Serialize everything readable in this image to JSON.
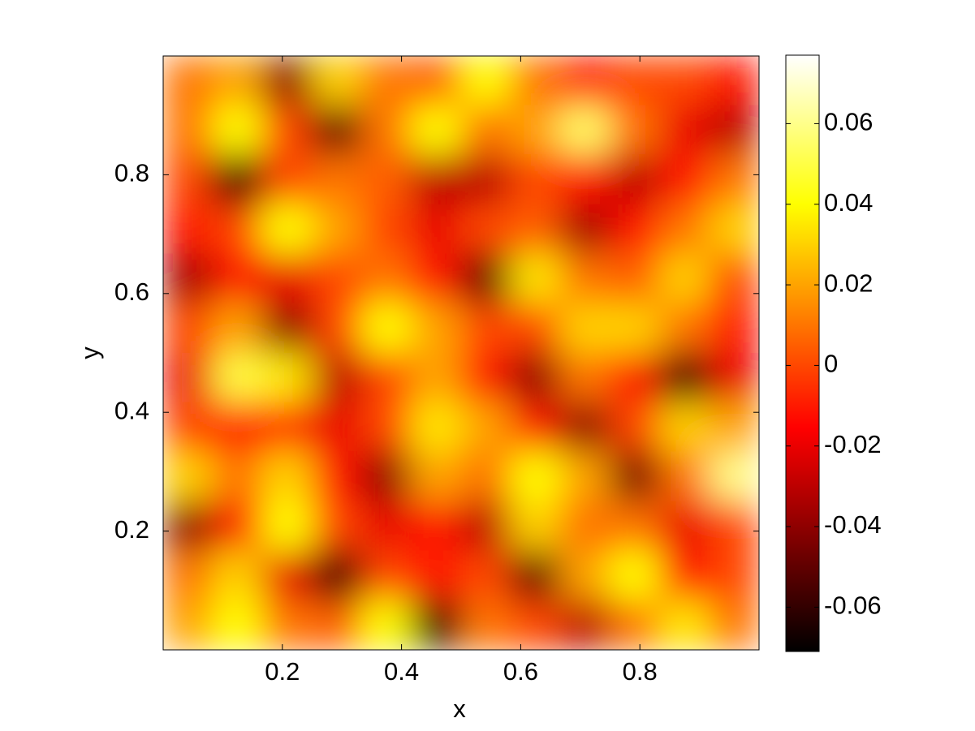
{
  "chart_data": {
    "type": "heatmap",
    "colormap": "hot",
    "xlabel": "x",
    "ylabel": "y",
    "x": [
      0.042,
      0.125,
      0.208,
      0.292,
      0.375,
      0.458,
      0.542,
      0.625,
      0.708,
      0.792,
      0.875,
      0.958
    ],
    "y": [
      0.958,
      0.875,
      0.792,
      0.708,
      0.625,
      0.542,
      0.458,
      0.375,
      0.292,
      0.208,
      0.125,
      0.042
    ],
    "values": [
      [
        0.01,
        0.02,
        -0.04,
        0.03,
        0.01,
        0.005,
        0.04,
        0.01,
        -0.01,
        0.0,
        0.0,
        -0.01
      ],
      [
        0.01,
        0.04,
        0.0,
        -0.05,
        0.01,
        0.04,
        0.01,
        0.02,
        0.055,
        0.01,
        -0.02,
        -0.03
      ],
      [
        0.0,
        -0.06,
        0.0,
        0.01,
        0.005,
        -0.03,
        -0.03,
        0.0,
        -0.01,
        -0.03,
        -0.01,
        0.01
      ],
      [
        -0.01,
        0.0,
        0.04,
        0.02,
        0.0,
        -0.02,
        0.0,
        0.005,
        -0.035,
        -0.01,
        0.01,
        0.03
      ],
      [
        -0.035,
        -0.01,
        -0.02,
        0.0,
        0.01,
        -0.01,
        -0.05,
        0.035,
        0.01,
        0.005,
        0.03,
        0.0
      ],
      [
        0.0,
        0.02,
        -0.04,
        0.0,
        0.04,
        0.02,
        0.0,
        0.0,
        0.03,
        0.03,
        0.01,
        -0.01
      ],
      [
        -0.02,
        0.05,
        0.035,
        -0.03,
        0.0,
        0.02,
        -0.01,
        -0.04,
        0.01,
        -0.01,
        -0.06,
        -0.02
      ],
      [
        0.0,
        -0.01,
        -0.005,
        -0.02,
        0.0,
        0.035,
        0.02,
        -0.01,
        -0.04,
        0.0,
        0.03,
        0.02
      ],
      [
        0.03,
        0.01,
        0.03,
        -0.01,
        -0.04,
        0.02,
        0.01,
        0.04,
        0.02,
        -0.045,
        0.01,
        0.06
      ],
      [
        -0.04,
        -0.01,
        0.04,
        0.0,
        -0.02,
        -0.01,
        -0.03,
        0.03,
        0.01,
        0.01,
        -0.02,
        0.0
      ],
      [
        0.01,
        0.03,
        -0.02,
        -0.06,
        0.0,
        -0.01,
        0.0,
        -0.05,
        0.02,
        0.04,
        -0.01,
        0.0
      ],
      [
        0.02,
        0.04,
        0.01,
        0.005,
        0.04,
        -0.06,
        0.01,
        0.0,
        -0.03,
        0.01,
        0.035,
        0.01
      ]
    ],
    "xlim": [
      0,
      1
    ],
    "ylim": [
      0,
      1
    ],
    "xticks": [
      0.2,
      0.4,
      0.6,
      0.8
    ],
    "yticks": [
      0.2,
      0.4,
      0.6,
      0.8
    ],
    "clim": [
      -0.071,
      0.077
    ],
    "cticks": [
      -0.06,
      -0.04,
      -0.02,
      0,
      0.02,
      0.04,
      0.06
    ]
  }
}
